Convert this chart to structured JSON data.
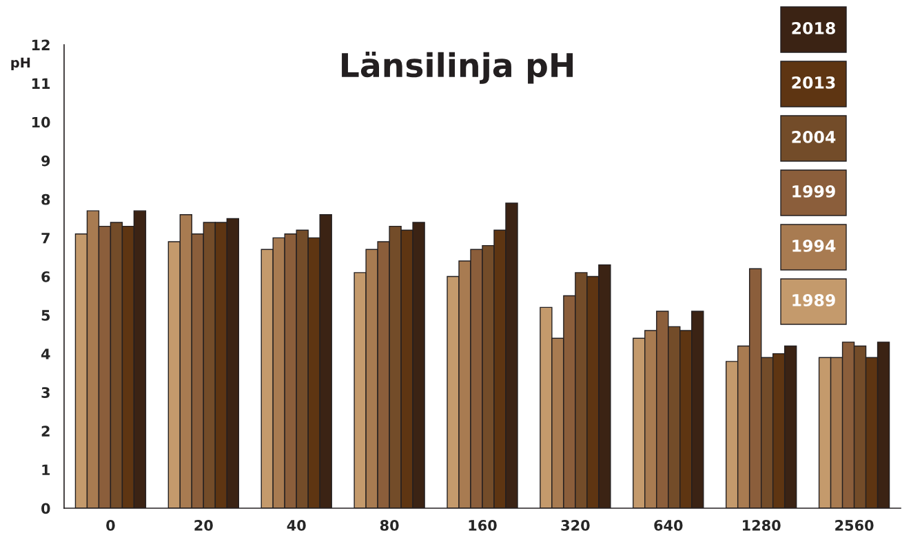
{
  "chart_data": {
    "type": "bar",
    "title": "Länsilinja pH",
    "ylabel": "pH",
    "categories": [
      "0",
      "20",
      "40",
      "80",
      "160",
      "320",
      "640",
      "1280",
      "2560"
    ],
    "series": [
      {
        "name": "1989",
        "color": "#c49a6c",
        "values": [
          7.1,
          6.9,
          6.7,
          6.1,
          6.0,
          5.2,
          4.4,
          3.8,
          3.9
        ]
      },
      {
        "name": "1994",
        "color": "#a87b51",
        "values": [
          7.7,
          7.6,
          7.0,
          6.7,
          6.4,
          4.4,
          4.6,
          4.2,
          3.9
        ]
      },
      {
        "name": "1999",
        "color": "#8b5e3b",
        "values": [
          7.3,
          7.1,
          7.1,
          6.9,
          6.7,
          5.5,
          5.1,
          6.2,
          4.3
        ]
      },
      {
        "name": "2004",
        "color": "#734c29",
        "values": [
          7.4,
          7.4,
          7.2,
          7.3,
          6.8,
          6.1,
          4.7,
          3.9,
          4.2
        ]
      },
      {
        "name": "2013",
        "color": "#5e3512",
        "values": [
          7.3,
          7.4,
          7.0,
          7.2,
          7.2,
          6.0,
          4.6,
          4.0,
          3.9
        ]
      },
      {
        "name": "2018",
        "color": "#3b2314",
        "values": [
          7.7,
          7.5,
          7.6,
          7.4,
          7.9,
          6.3,
          5.1,
          4.2,
          4.3
        ]
      }
    ],
    "ylim": [
      0,
      12
    ],
    "yticks": [
      0,
      1,
      2,
      3,
      4,
      5,
      6,
      7,
      8,
      9,
      10,
      11,
      12
    ],
    "grid": false,
    "legend": "top right"
  }
}
